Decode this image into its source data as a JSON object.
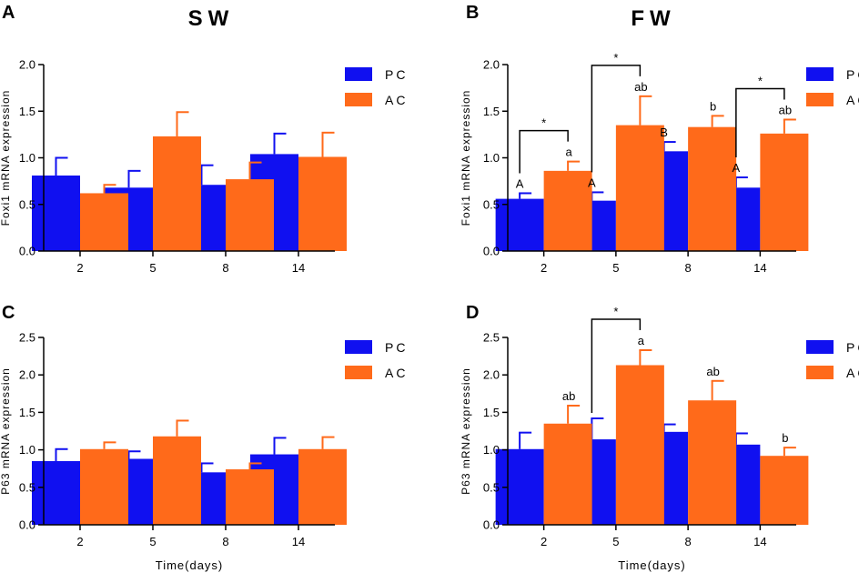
{
  "figure": {
    "column_titles": [
      "SW",
      "FW"
    ],
    "legend": [
      "PC",
      "AC"
    ],
    "colors": {
      "PC": "#1010f0",
      "AC": "#ff6a1a",
      "axis": "#000000"
    }
  },
  "chart_data": [
    {
      "panel": "A",
      "type": "bar",
      "title": "SW",
      "categories": [
        "2",
        "5",
        "8",
        "14"
      ],
      "ylabel": "Foxi1 mRNA expression",
      "xlabel": "",
      "ylim": [
        0,
        2.0
      ],
      "yticks": [
        "0.0",
        "0.5",
        "1.0",
        "1.5",
        "2.0"
      ],
      "legend_position": "top-right",
      "series": [
        {
          "name": "PC",
          "values": [
            0.81,
            0.68,
            0.71,
            1.04
          ],
          "errors": [
            0.19,
            0.18,
            0.21,
            0.22
          ]
        },
        {
          "name": "AC",
          "values": [
            0.62,
            1.23,
            0.77,
            1.01
          ],
          "errors": [
            0.09,
            0.26,
            0.18,
            0.26
          ]
        }
      ],
      "letters": [],
      "significance": []
    },
    {
      "panel": "B",
      "type": "bar",
      "title": "FW",
      "categories": [
        "2",
        "5",
        "8",
        "14"
      ],
      "ylabel": "Foxi1 mRNA expression",
      "xlabel": "",
      "ylim": [
        0,
        2.0
      ],
      "yticks": [
        "0.0",
        "0.5",
        "1.0",
        "1.5",
        "2.0"
      ],
      "legend_position": "top-right",
      "series": [
        {
          "name": "PC",
          "values": [
            0.56,
            0.54,
            1.07,
            0.68
          ],
          "errors": [
            0.06,
            0.09,
            0.1,
            0.11
          ]
        },
        {
          "name": "AC",
          "values": [
            0.86,
            1.35,
            1.33,
            1.26
          ],
          "errors": [
            0.1,
            0.31,
            0.12,
            0.15
          ]
        }
      ],
      "letters": [
        {
          "category": 0,
          "series": 0,
          "text": "A"
        },
        {
          "category": 0,
          "series": 1,
          "text": "a"
        },
        {
          "category": 1,
          "series": 0,
          "text": "A"
        },
        {
          "category": 1,
          "series": 1,
          "text": "ab"
        },
        {
          "category": 2,
          "series": 0,
          "text": "B"
        },
        {
          "category": 2,
          "series": 1,
          "text": "b"
        },
        {
          "category": 3,
          "series": 0,
          "text": "A"
        },
        {
          "category": 3,
          "series": 1,
          "text": "ab"
        }
      ],
      "significance": [
        {
          "category": 0,
          "text": "*"
        },
        {
          "category": 1,
          "text": "*"
        },
        {
          "category": 3,
          "text": "*"
        }
      ]
    },
    {
      "panel": "C",
      "type": "bar",
      "title": "",
      "categories": [
        "2",
        "5",
        "8",
        "14"
      ],
      "ylabel": "P63 mRNA expression",
      "xlabel": "Time(days)",
      "ylim": [
        0,
        2.5
      ],
      "yticks": [
        "0.0",
        "0.5",
        "1.0",
        "1.5",
        "2.0",
        "2.5"
      ],
      "legend_position": "top-right",
      "series": [
        {
          "name": "PC",
          "values": [
            0.85,
            0.88,
            0.7,
            0.94
          ],
          "errors": [
            0.16,
            0.1,
            0.12,
            0.22
          ]
        },
        {
          "name": "AC",
          "values": [
            1.01,
            1.18,
            0.74,
            1.01
          ],
          "errors": [
            0.09,
            0.21,
            0.08,
            0.16
          ]
        }
      ],
      "letters": [],
      "significance": []
    },
    {
      "panel": "D",
      "type": "bar",
      "title": "",
      "categories": [
        "2",
        "5",
        "8",
        "14"
      ],
      "ylabel": "P63 mRNA expression",
      "xlabel": "Time(days)",
      "ylim": [
        0,
        2.5
      ],
      "yticks": [
        "0.0",
        "0.5",
        "1.0",
        "1.5",
        "2.0",
        "2.5"
      ],
      "legend_position": "top-right",
      "series": [
        {
          "name": "PC",
          "values": [
            1.01,
            1.14,
            1.24,
            1.07
          ],
          "errors": [
            0.22,
            0.28,
            0.1,
            0.15
          ]
        },
        {
          "name": "AC",
          "values": [
            1.35,
            2.13,
            1.66,
            0.92
          ],
          "errors": [
            0.24,
            0.2,
            0.26,
            0.11
          ]
        }
      ],
      "letters": [
        {
          "category": 0,
          "series": 1,
          "text": "ab"
        },
        {
          "category": 1,
          "series": 1,
          "text": "a"
        },
        {
          "category": 2,
          "series": 1,
          "text": "ab"
        },
        {
          "category": 3,
          "series": 1,
          "text": "b"
        }
      ],
      "significance": [
        {
          "category": 1,
          "text": "*"
        }
      ]
    }
  ]
}
